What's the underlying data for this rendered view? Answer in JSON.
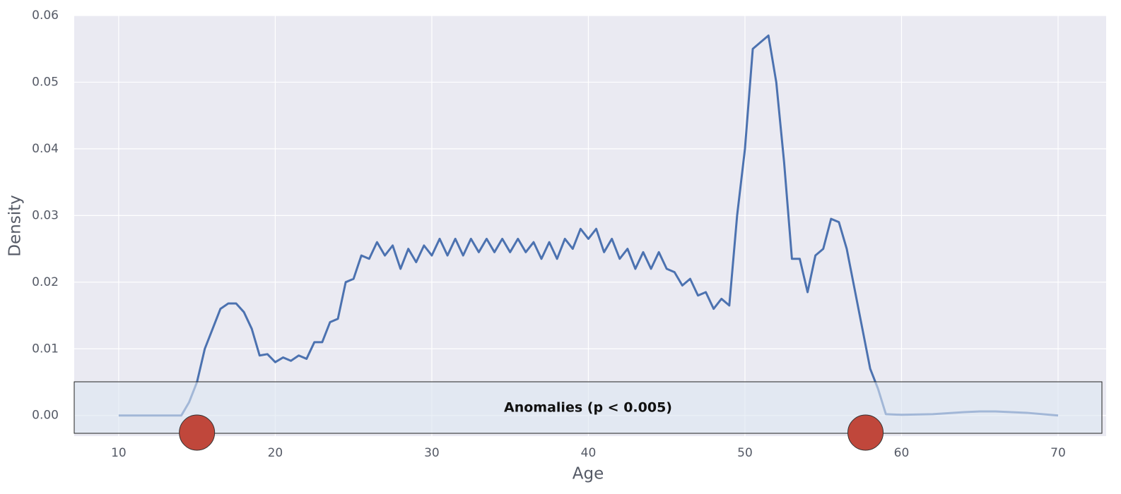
{
  "chart_data": {
    "type": "line",
    "x_label": "Age",
    "y_label": "Density",
    "x": [
      10,
      11,
      12,
      13,
      14,
      14.5,
      15,
      15.5,
      16,
      16.5,
      17,
      17.5,
      18,
      18.5,
      19,
      19.5,
      20,
      20.5,
      21,
      21.5,
      22,
      22.5,
      23,
      23.5,
      24,
      24.5,
      25,
      25.5,
      26,
      26.5,
      27,
      27.5,
      28,
      28.5,
      29,
      29.5,
      30,
      30.5,
      31,
      31.5,
      32,
      32.5,
      33,
      33.5,
      34,
      34.5,
      35,
      35.5,
      36,
      36.5,
      37,
      37.5,
      38,
      38.5,
      39,
      39.5,
      40,
      40.5,
      41,
      41.5,
      42,
      42.5,
      43,
      43.5,
      44,
      44.5,
      45,
      45.5,
      46,
      46.5,
      47,
      47.5,
      48,
      48.5,
      49,
      49.5,
      50,
      50.5,
      51,
      51.5,
      52,
      52.5,
      53,
      53.5,
      54,
      54.5,
      55,
      55.5,
      56,
      56.5,
      57,
      57.5,
      58,
      58.5,
      59,
      60,
      62,
      64,
      65,
      66,
      68,
      70
    ],
    "series": [
      {
        "color": "#4c72b0",
        "values": [
          0,
          0,
          0,
          0,
          0,
          0.002,
          0.005,
          0.01,
          0.013,
          0.016,
          0.0168,
          0.0168,
          0.0155,
          0.013,
          0.009,
          0.0092,
          0.008,
          0.0087,
          0.0082,
          0.009,
          0.0085,
          0.011,
          0.011,
          0.014,
          0.0145,
          0.02,
          0.0205,
          0.024,
          0.0235,
          0.026,
          0.024,
          0.0255,
          0.022,
          0.025,
          0.023,
          0.0255,
          0.024,
          0.0265,
          0.024,
          0.0265,
          0.024,
          0.0265,
          0.0245,
          0.0265,
          0.0245,
          0.0265,
          0.0245,
          0.0265,
          0.0245,
          0.026,
          0.0235,
          0.026,
          0.0235,
          0.0265,
          0.025,
          0.028,
          0.0265,
          0.028,
          0.0245,
          0.0265,
          0.0235,
          0.025,
          0.022,
          0.0245,
          0.022,
          0.0245,
          0.022,
          0.0215,
          0.0195,
          0.0205,
          0.018,
          0.0185,
          0.016,
          0.0175,
          0.0165,
          0.03,
          0.04,
          0.055,
          0.056,
          0.057,
          0.05,
          0.038,
          0.0235,
          0.0235,
          0.0185,
          0.024,
          0.025,
          0.0295,
          0.029,
          0.025,
          0.019,
          0.013,
          0.007,
          0.004,
          0.0002,
          0.0001,
          0.0002,
          0.0005,
          0.0006,
          0.0006,
          0.0004,
          0
        ]
      }
    ],
    "xlim": [
      7.16,
      73.07
    ],
    "ylim": [
      -0.0031,
      0.06
    ],
    "xticks": [
      10,
      20,
      30,
      40,
      50,
      60,
      70
    ],
    "yticks": [
      {
        "value": 0,
        "label": "0.00"
      },
      {
        "value": 0.01,
        "label": "0.01"
      },
      {
        "value": 0.02,
        "label": "0.02"
      },
      {
        "value": 0.03,
        "label": "0.03"
      },
      {
        "value": 0.04,
        "label": "0.04"
      },
      {
        "value": 0.05,
        "label": "0.05"
      },
      {
        "value": 0.06,
        "label": "0.06"
      }
    ],
    "grid": true,
    "annotation": {
      "label": "Anomalies (p < 0.005)",
      "x": [
        15,
        57.7
      ],
      "color": "#c0473b"
    }
  }
}
